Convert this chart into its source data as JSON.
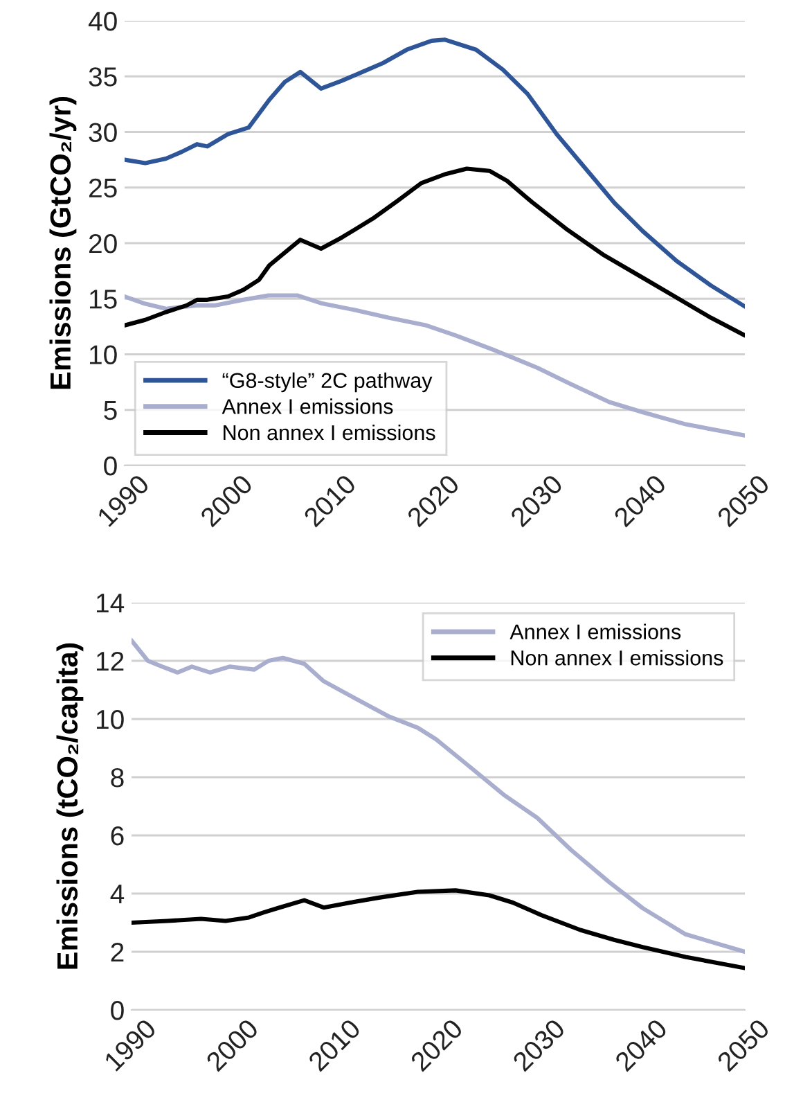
{
  "chart_data": [
    {
      "type": "line",
      "ylabel": "Emissions (GtCO₂/yr)",
      "xlim": [
        1990,
        2050
      ],
      "xticks": [
        1990,
        2000,
        2010,
        2020,
        2030,
        2040,
        2050
      ],
      "ylim": [
        0,
        40
      ],
      "yticks": [
        0,
        5,
        10,
        15,
        20,
        25,
        30,
        35,
        40
      ],
      "grid": "y",
      "legend": "bottom left",
      "marker": "none",
      "line_style": "solid",
      "series": [
        {
          "name": "“G8-style” 2C pathway",
          "color": "#2e5597",
          "x": [
            1990,
            1992,
            1994,
            1995.5,
            1997,
            1998,
            2000,
            2002,
            2004,
            2005.5,
            2007,
            2009,
            2011,
            2013,
            2015,
            2017.3,
            2019.7,
            2021,
            2024,
            2026.6,
            2029,
            2031.8,
            2034.6,
            2037.4,
            2040.1,
            2043.4,
            2046.7,
            2050
          ],
          "values": [
            27.5,
            27.2,
            27.6,
            28.2,
            28.9,
            28.7,
            29.8,
            30.4,
            32.9,
            34.5,
            35.4,
            33.9,
            34.6,
            35.4,
            36.2,
            37.4,
            38.2,
            38.3,
            37.4,
            35.6,
            33.4,
            29.8,
            26.7,
            23.6,
            21.1,
            18.4,
            16.2,
            14.3
          ]
        },
        {
          "name": "Annex I emissions",
          "color": "#a9aece",
          "x": [
            1990,
            1991.8,
            1994,
            1997,
            1998.7,
            2001.5,
            2003.9,
            2006.7,
            2009,
            2012.2,
            2015.5,
            2019.2,
            2022,
            2025.7,
            2029.9,
            2033.2,
            2036.9,
            2040.1,
            2044.3,
            2050
          ],
          "values": [
            15.2,
            14.6,
            14.1,
            14.4,
            14.4,
            14.9,
            15.3,
            15.3,
            14.6,
            14.0,
            13.3,
            12.6,
            11.7,
            10.4,
            8.8,
            7.3,
            5.7,
            4.8,
            3.7,
            2.7
          ]
        },
        {
          "name": "Non annex I emissions",
          "color": "#000000",
          "x": [
            1990,
            1992,
            1994,
            1996,
            1997,
            1998,
            2000,
            2001.5,
            2003,
            2004,
            2005.7,
            2007,
            2009,
            2011,
            2014,
            2016.4,
            2018.7,
            2021,
            2023.1,
            2025.3,
            2027,
            2029.4,
            2032.7,
            2036.4,
            2040.1,
            2043.4,
            2046.7,
            2050
          ],
          "values": [
            12.6,
            13.1,
            13.8,
            14.4,
            14.9,
            14.9,
            15.2,
            15.8,
            16.7,
            18.0,
            19.3,
            20.3,
            19.5,
            20.5,
            22.2,
            23.8,
            25.4,
            26.2,
            26.7,
            26.5,
            25.6,
            23.7,
            21.3,
            18.9,
            16.9,
            15.1,
            13.3,
            11.7
          ]
        }
      ]
    },
    {
      "type": "line",
      "ylabel": "Emissions (tCO₂/capita)",
      "xlim": [
        1990,
        2050
      ],
      "xticks": [
        1990,
        2000,
        2010,
        2020,
        2030,
        2040,
        2050
      ],
      "ylim": [
        0,
        14
      ],
      "yticks": [
        0,
        2,
        4,
        6,
        8,
        10,
        12,
        14
      ],
      "grid": "y",
      "legend": "top right",
      "marker": "none",
      "line_style": "solid",
      "series": [
        {
          "name": "Annex I emissions",
          "color": "#a9aece",
          "x": [
            1990,
            1991.6,
            1993,
            1994.5,
            1995.9,
            1997.7,
            1999.6,
            2002,
            2003.4,
            2004.8,
            2006.9,
            2008.8,
            2011.4,
            2015.1,
            2018,
            2019.8,
            2022.6,
            2026.4,
            2029.7,
            2033,
            2036.7,
            2040,
            2044.2,
            2050
          ],
          "values": [
            12.7,
            12.0,
            11.8,
            11.6,
            11.8,
            11.6,
            11.8,
            11.7,
            12.0,
            12.1,
            11.9,
            11.3,
            10.8,
            10.1,
            9.7,
            9.3,
            8.5,
            7.4,
            6.6,
            5.5,
            4.4,
            3.5,
            2.6,
            2.0
          ]
        },
        {
          "name": "Non annex I emissions",
          "color": "#000000",
          "x": [
            1990,
            1993.5,
            1996.8,
            1999.2,
            2001.5,
            2002.9,
            2004.3,
            2006.9,
            2008.8,
            2011.4,
            2014.2,
            2018,
            2021.7,
            2025,
            2027.3,
            2030.1,
            2033.9,
            2037.2,
            2040,
            2044.2,
            2050
          ],
          "values": [
            3.0,
            3.06,
            3.13,
            3.06,
            3.18,
            3.35,
            3.5,
            3.77,
            3.52,
            3.69,
            3.86,
            4.06,
            4.11,
            3.94,
            3.69,
            3.26,
            2.75,
            2.41,
            2.16,
            1.82,
            1.44
          ]
        }
      ]
    }
  ]
}
